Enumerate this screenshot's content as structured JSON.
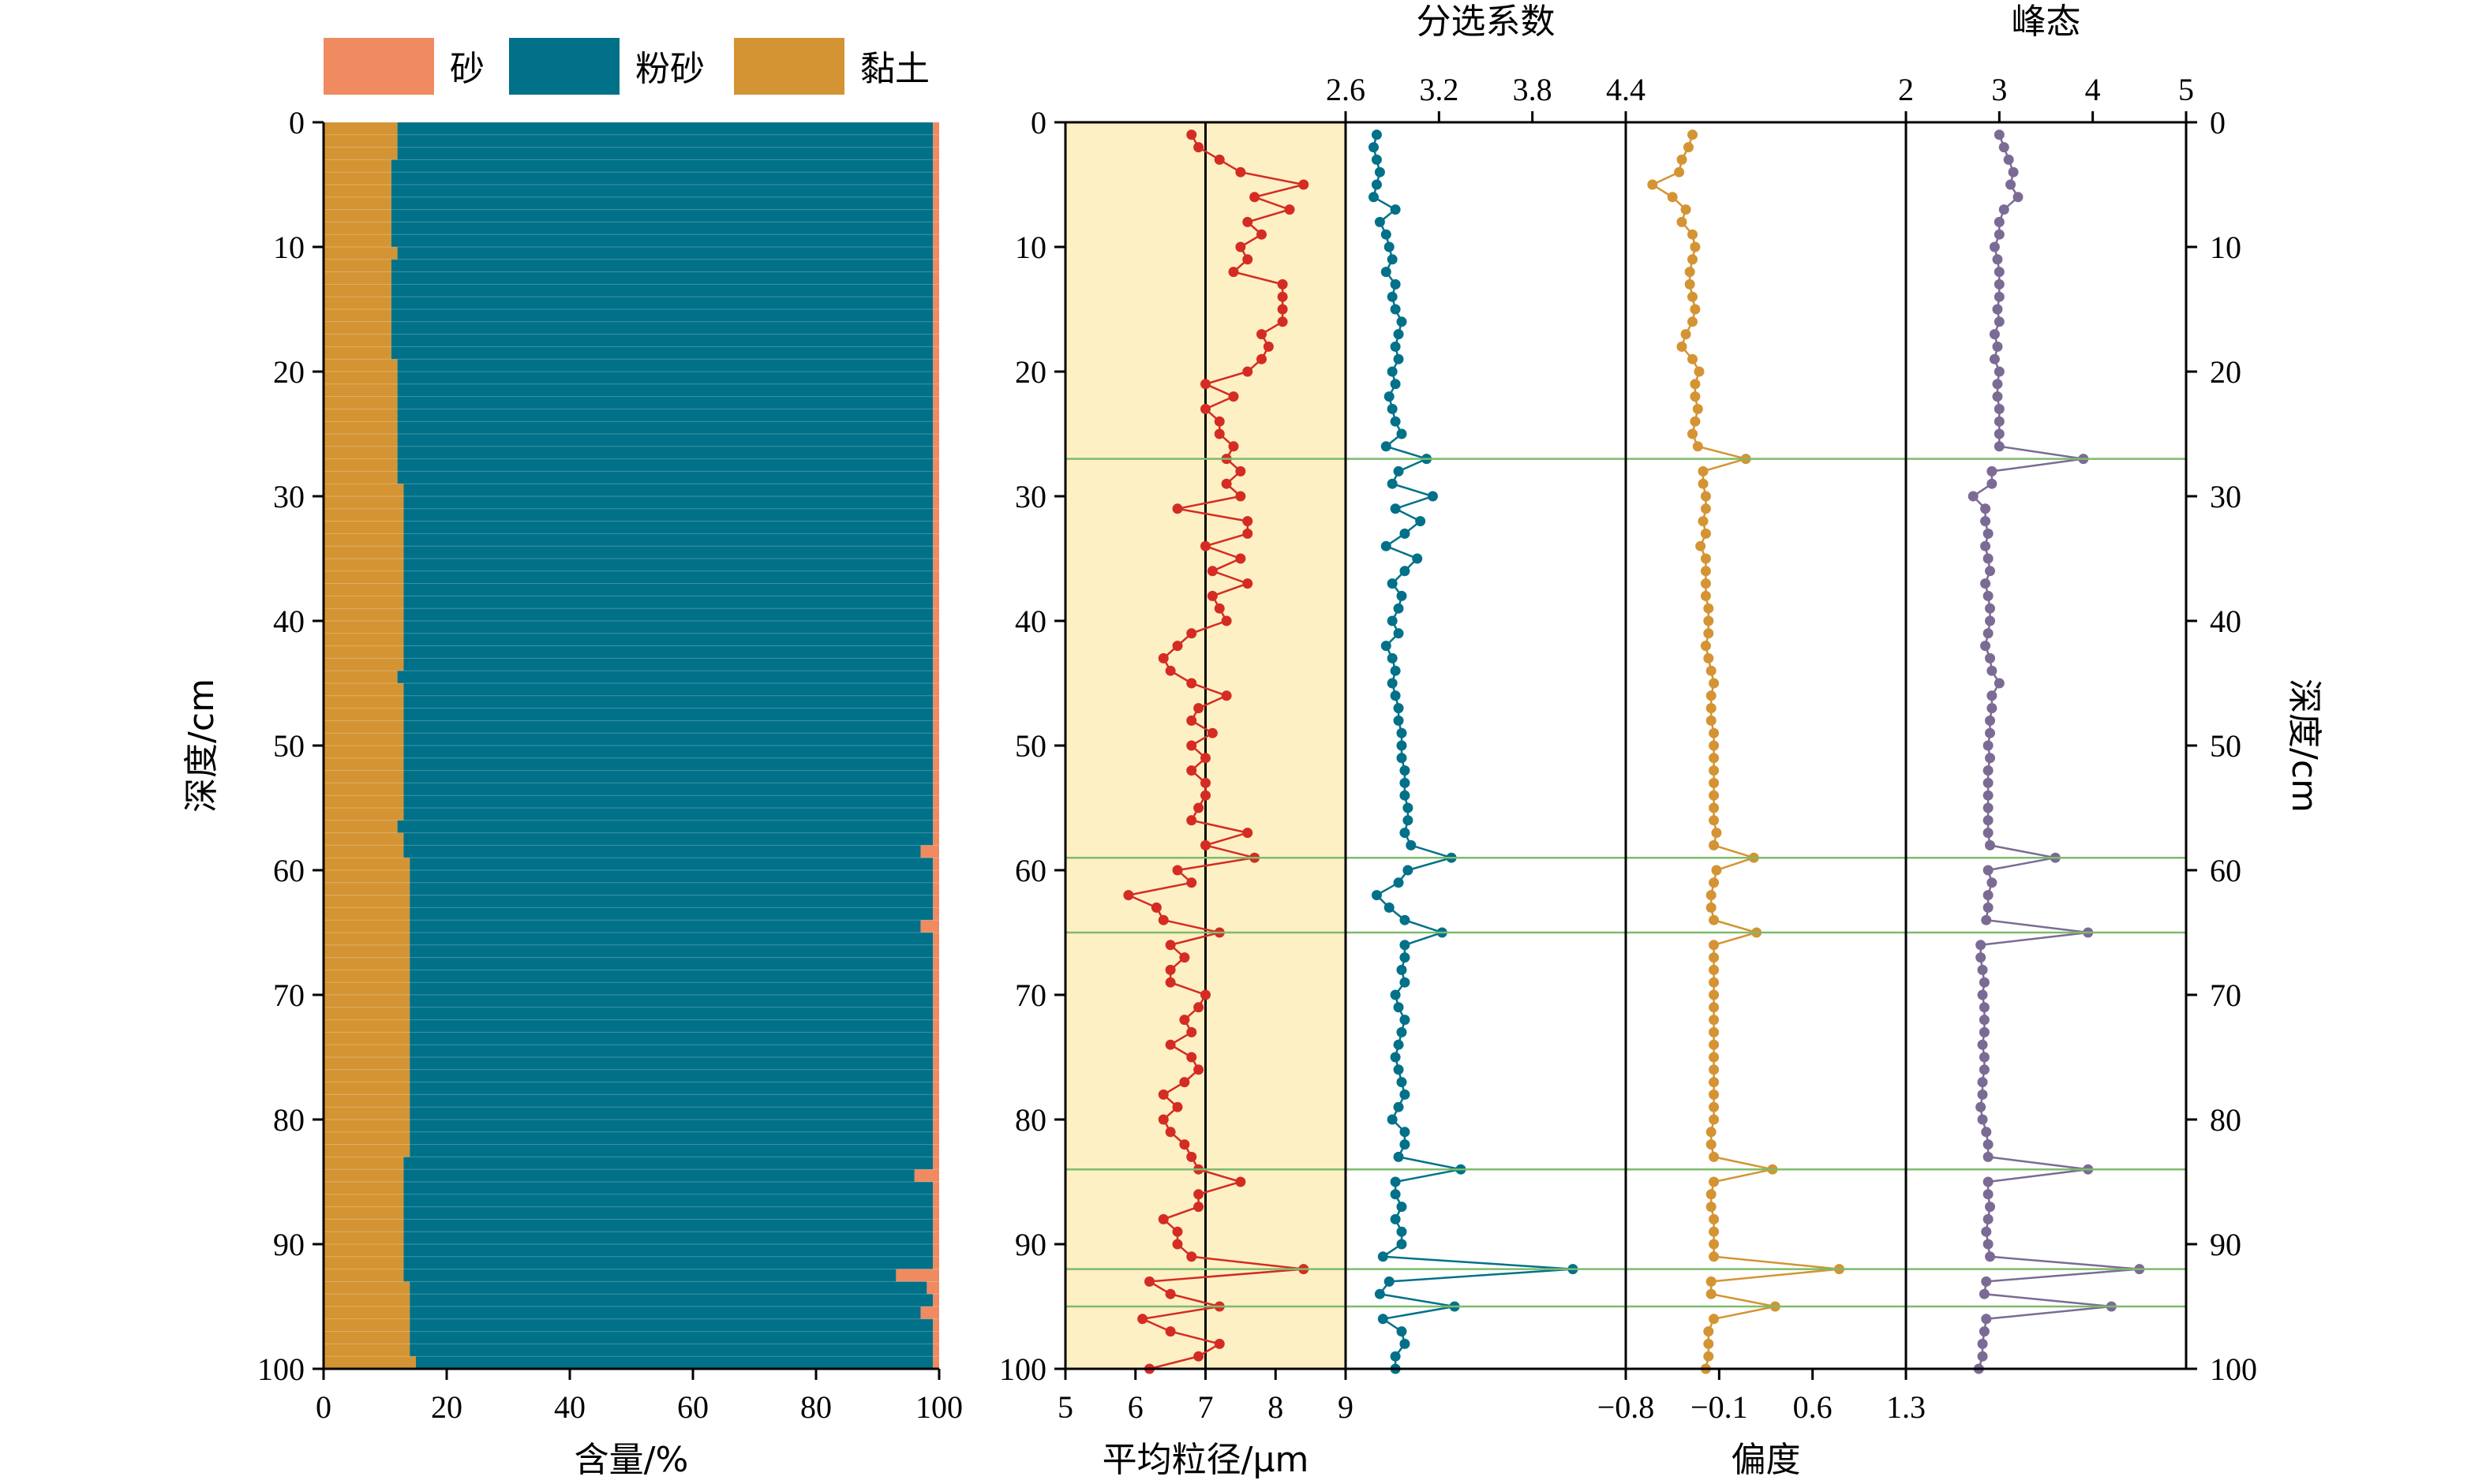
{
  "chart_data": [
    {
      "type": "stacked-bar-horizontal",
      "xlabel": "含量/%",
      "ylabel": "深度/cm",
      "xlim": [
        0,
        100
      ],
      "ylim": [
        0,
        100
      ],
      "xticks": [
        "0",
        "20",
        "40",
        "60",
        "80",
        "100"
      ],
      "yticks": [
        "0",
        "10",
        "20",
        "30",
        "40",
        "50",
        "60",
        "70",
        "80",
        "90",
        "100"
      ],
      "legend": {
        "position": "top",
        "entries": [
          {
            "name": "砂",
            "color": "#F08A60"
          },
          {
            "name": "粉砂",
            "color": "#007189"
          },
          {
            "name": "黏土",
            "color": "#D49433"
          }
        ]
      },
      "depth": [
        1,
        2,
        3,
        4,
        5,
        6,
        7,
        8,
        9,
        10,
        11,
        12,
        13,
        14,
        15,
        16,
        17,
        18,
        19,
        20,
        21,
        22,
        23,
        24,
        25,
        26,
        27,
        28,
        29,
        30,
        31,
        32,
        33,
        34,
        35,
        36,
        37,
        38,
        39,
        40,
        41,
        42,
        43,
        44,
        45,
        46,
        47,
        48,
        49,
        50,
        51,
        52,
        53,
        54,
        55,
        56,
        57,
        58,
        59,
        60,
        61,
        62,
        63,
        64,
        65,
        66,
        67,
        68,
        69,
        70,
        71,
        72,
        73,
        74,
        75,
        76,
        77,
        78,
        79,
        80,
        81,
        82,
        83,
        84,
        85,
        86,
        87,
        88,
        89,
        90,
        91,
        92,
        93,
        94,
        95,
        96,
        97,
        98,
        99,
        100
      ],
      "clay": [
        12,
        12,
        12,
        11,
        11,
        11,
        11,
        11,
        11,
        11,
        12,
        11,
        11,
        11,
        11,
        11,
        11,
        11,
        11,
        12,
        12,
        12,
        12,
        12,
        12,
        12,
        12,
        12,
        12,
        13,
        13,
        13,
        13,
        13,
        13,
        13,
        13,
        13,
        13,
        13,
        13,
        13,
        13,
        13,
        12,
        13,
        13,
        13,
        13,
        13,
        13,
        13,
        13,
        13,
        13,
        13,
        12,
        13,
        13,
        14,
        14,
        14,
        14,
        14,
        14,
        14,
        14,
        14,
        14,
        14,
        14,
        14,
        14,
        14,
        14,
        14,
        14,
        14,
        14,
        14,
        14,
        14,
        14,
        13,
        13,
        13,
        13,
        13,
        13,
        13,
        13,
        13,
        13,
        14,
        14,
        14,
        14,
        14,
        14,
        15
      ],
      "sand": [
        1,
        1,
        1,
        1,
        1,
        1,
        1,
        1,
        1,
        1,
        1,
        1,
        1,
        1,
        1,
        1,
        1,
        1,
        1,
        1,
        1,
        1,
        1,
        1,
        1,
        1,
        1,
        1,
        1,
        1,
        1,
        1,
        1,
        1,
        1,
        1,
        1,
        1,
        1,
        1,
        1,
        1,
        1,
        1,
        1,
        1,
        1,
        1,
        1,
        1,
        1,
        1,
        1,
        1,
        1,
        1,
        1,
        1,
        3,
        1,
        1,
        1,
        1,
        1,
        3,
        1,
        1,
        1,
        1,
        1,
        1,
        1,
        1,
        1,
        1,
        1,
        1,
        1,
        1,
        1,
        1,
        1,
        1,
        1,
        4,
        1,
        1,
        1,
        1,
        1,
        1,
        1,
        7,
        2,
        1,
        3,
        1,
        1,
        1,
        1
      ]
    },
    {
      "type": "line",
      "xlabel": "平均粒径/μm",
      "xlim": [
        5,
        9
      ],
      "xticks": [
        "5",
        "6",
        "7",
        "8",
        "9"
      ],
      "ylim": [
        0,
        100
      ],
      "reference_x": 7,
      "color": "#D42C23",
      "background": "#FDF0C4",
      "depth": [
        1,
        2,
        3,
        4,
        5,
        6,
        7,
        8,
        9,
        10,
        11,
        12,
        13,
        14,
        15,
        16,
        17,
        18,
        19,
        20,
        21,
        22,
        23,
        24,
        25,
        26,
        27,
        28,
        29,
        30,
        31,
        32,
        33,
        34,
        35,
        36,
        37,
        38,
        39,
        40,
        41,
        42,
        43,
        44,
        45,
        46,
        47,
        48,
        49,
        50,
        51,
        52,
        53,
        54,
        55,
        56,
        57,
        58,
        59,
        60,
        61,
        62,
        63,
        64,
        65,
        66,
        67,
        68,
        69,
        70,
        71,
        72,
        73,
        74,
        75,
        76,
        77,
        78,
        79,
        80,
        81,
        82,
        83,
        84,
        85,
        86,
        87,
        88,
        89,
        90,
        91,
        92,
        93,
        94,
        95,
        96,
        97,
        98,
        99,
        100
      ],
      "values": [
        6.8,
        6.9,
        7.2,
        7.5,
        8.4,
        7.7,
        8.2,
        7.6,
        7.8,
        7.5,
        7.6,
        7.4,
        8.1,
        8.1,
        8.1,
        8.1,
        7.8,
        7.9,
        7.8,
        7.6,
        7.0,
        7.4,
        7.0,
        7.2,
        7.2,
        7.4,
        7.3,
        7.5,
        7.3,
        7.5,
        6.6,
        7.6,
        7.6,
        7.0,
        7.5,
        7.1,
        7.6,
        7.1,
        7.2,
        7.3,
        6.8,
        6.6,
        6.4,
        6.5,
        6.8,
        7.3,
        6.9,
        6.8,
        7.1,
        6.8,
        7.0,
        6.8,
        7.0,
        7.0,
        6.9,
        6.8,
        7.6,
        7.0,
        7.7,
        6.6,
        6.8,
        5.9,
        6.3,
        6.4,
        7.2,
        6.5,
        6.7,
        6.5,
        6.5,
        7.0,
        6.9,
        6.7,
        6.8,
        6.5,
        6.8,
        6.9,
        6.7,
        6.4,
        6.6,
        6.4,
        6.5,
        6.7,
        6.8,
        6.9,
        7.5,
        6.9,
        6.9,
        6.4,
        6.6,
        6.6,
        6.8,
        8.4,
        6.2,
        6.5,
        7.2,
        6.1,
        6.5,
        7.2,
        6.9,
        6.2
      ]
    },
    {
      "type": "line",
      "title": "分选系数",
      "xlim": [
        2.6,
        4.4
      ],
      "xticks": [
        "2.6",
        "3.2",
        "3.8",
        "4.4"
      ],
      "xaxis_position": "top",
      "ylim": [
        0,
        100
      ],
      "color": "#007189",
      "depth": [
        1,
        2,
        3,
        4,
        5,
        6,
        7,
        8,
        9,
        10,
        11,
        12,
        13,
        14,
        15,
        16,
        17,
        18,
        19,
        20,
        21,
        22,
        23,
        24,
        25,
        26,
        27,
        28,
        29,
        30,
        31,
        32,
        33,
        34,
        35,
        36,
        37,
        38,
        39,
        40,
        41,
        42,
        43,
        44,
        45,
        46,
        47,
        48,
        49,
        50,
        51,
        52,
        53,
        54,
        55,
        56,
        57,
        58,
        59,
        60,
        61,
        62,
        63,
        64,
        65,
        66,
        67,
        68,
        69,
        70,
        71,
        72,
        73,
        74,
        75,
        76,
        77,
        78,
        79,
        80,
        81,
        82,
        83,
        84,
        85,
        86,
        87,
        88,
        89,
        90,
        91,
        92,
        93,
        94,
        95,
        96,
        97,
        98,
        99,
        100
      ],
      "values": [
        2.8,
        2.78,
        2.8,
        2.82,
        2.8,
        2.78,
        2.92,
        2.82,
        2.86,
        2.88,
        2.9,
        2.86,
        2.92,
        2.9,
        2.92,
        2.96,
        2.94,
        2.92,
        2.94,
        2.9,
        2.92,
        2.88,
        2.9,
        2.92,
        2.96,
        2.86,
        3.12,
        2.94,
        2.9,
        3.16,
        2.92,
        3.08,
        2.98,
        2.86,
        3.06,
        2.98,
        2.9,
        2.96,
        2.94,
        2.9,
        2.94,
        2.86,
        2.9,
        2.92,
        2.9,
        2.92,
        2.94,
        2.94,
        2.96,
        2.96,
        2.96,
        2.98,
        2.98,
        2.98,
        3.0,
        3.0,
        2.98,
        3.02,
        3.28,
        3.0,
        2.94,
        2.8,
        2.88,
        2.98,
        3.22,
        2.98,
        2.98,
        2.96,
        2.98,
        2.92,
        2.94,
        2.98,
        2.96,
        2.94,
        2.92,
        2.94,
        2.96,
        2.98,
        2.94,
        2.9,
        2.98,
        2.98,
        2.94,
        3.34,
        2.92,
        2.92,
        2.96,
        2.92,
        2.96,
        2.96,
        2.84,
        4.06,
        2.88,
        2.82,
        3.3,
        2.84,
        2.96,
        2.98,
        2.92,
        2.92
      ]
    },
    {
      "type": "line",
      "xlabel": "偏度",
      "xlim": [
        -0.8,
        1.3
      ],
      "xticks": [
        "−0.8",
        "−0.1",
        "0.6",
        "1.3"
      ],
      "ylim": [
        0,
        100
      ],
      "color": "#D49433",
      "depth": [
        1,
        2,
        3,
        4,
        5,
        6,
        7,
        8,
        9,
        10,
        11,
        12,
        13,
        14,
        15,
        16,
        17,
        18,
        19,
        20,
        21,
        22,
        23,
        24,
        25,
        26,
        27,
        28,
        29,
        30,
        31,
        32,
        33,
        34,
        35,
        36,
        37,
        38,
        39,
        40,
        41,
        42,
        43,
        44,
        45,
        46,
        47,
        48,
        49,
        50,
        51,
        52,
        53,
        54,
        55,
        56,
        57,
        58,
        59,
        60,
        61,
        62,
        63,
        64,
        65,
        66,
        67,
        68,
        69,
        70,
        71,
        72,
        73,
        74,
        75,
        76,
        77,
        78,
        79,
        80,
        81,
        82,
        83,
        84,
        85,
        86,
        87,
        88,
        89,
        90,
        91,
        92,
        93,
        94,
        95,
        96,
        97,
        98,
        99,
        100
      ],
      "values": [
        -0.3,
        -0.33,
        -0.38,
        -0.4,
        -0.6,
        -0.45,
        -0.35,
        -0.38,
        -0.3,
        -0.28,
        -0.3,
        -0.32,
        -0.32,
        -0.3,
        -0.28,
        -0.3,
        -0.35,
        -0.38,
        -0.3,
        -0.25,
        -0.28,
        -0.28,
        -0.26,
        -0.28,
        -0.3,
        -0.26,
        0.1,
        -0.22,
        -0.22,
        -0.2,
        -0.2,
        -0.22,
        -0.2,
        -0.24,
        -0.2,
        -0.2,
        -0.2,
        -0.2,
        -0.18,
        -0.18,
        -0.18,
        -0.2,
        -0.18,
        -0.16,
        -0.14,
        -0.16,
        -0.16,
        -0.16,
        -0.14,
        -0.14,
        -0.14,
        -0.14,
        -0.14,
        -0.14,
        -0.14,
        -0.14,
        -0.12,
        -0.14,
        0.16,
        -0.12,
        -0.14,
        -0.16,
        -0.16,
        -0.14,
        0.18,
        -0.14,
        -0.14,
        -0.14,
        -0.14,
        -0.14,
        -0.14,
        -0.14,
        -0.14,
        -0.14,
        -0.14,
        -0.14,
        -0.14,
        -0.14,
        -0.14,
        -0.14,
        -0.16,
        -0.16,
        -0.14,
        0.3,
        -0.14,
        -0.16,
        -0.16,
        -0.14,
        -0.14,
        -0.14,
        -0.14,
        0.8,
        -0.16,
        -0.16,
        0.32,
        -0.14,
        -0.18,
        -0.18,
        -0.18,
        -0.2
      ]
    },
    {
      "type": "line",
      "title": "峰态",
      "xlim": [
        2,
        5
      ],
      "xticks": [
        "2",
        "3",
        "4",
        "5"
      ],
      "xaxis_position": "top",
      "ylim": [
        0,
        100
      ],
      "yticks_right": [
        "0",
        "10",
        "20",
        "30",
        "40",
        "50",
        "60",
        "70",
        "80",
        "90",
        "100"
      ],
      "ylabel_right": "深度/cm",
      "color": "#7B6B94",
      "depth": [
        1,
        2,
        3,
        4,
        5,
        6,
        7,
        8,
        9,
        10,
        11,
        12,
        13,
        14,
        15,
        16,
        17,
        18,
        19,
        20,
        21,
        22,
        23,
        24,
        25,
        26,
        27,
        28,
        29,
        30,
        31,
        32,
        33,
        34,
        35,
        36,
        37,
        38,
        39,
        40,
        41,
        42,
        43,
        44,
        45,
        46,
        47,
        48,
        49,
        50,
        51,
        52,
        53,
        54,
        55,
        56,
        57,
        58,
        59,
        60,
        61,
        62,
        63,
        64,
        65,
        66,
        67,
        68,
        69,
        70,
        71,
        72,
        73,
        74,
        75,
        76,
        77,
        78,
        79,
        80,
        81,
        82,
        83,
        84,
        85,
        86,
        87,
        88,
        89,
        90,
        91,
        92,
        93,
        94,
        95,
        96,
        97,
        98,
        99,
        100
      ],
      "values": [
        3.0,
        3.05,
        3.1,
        3.15,
        3.12,
        3.2,
        3.05,
        3.0,
        3.0,
        2.95,
        2.98,
        3.0,
        3.0,
        3.0,
        2.98,
        3.0,
        2.95,
        2.98,
        2.95,
        3.0,
        2.98,
        2.98,
        3.0,
        3.0,
        3.0,
        3.0,
        3.9,
        2.92,
        2.92,
        2.72,
        2.85,
        2.85,
        2.88,
        2.85,
        2.88,
        2.9,
        2.85,
        2.88,
        2.9,
        2.9,
        2.88,
        2.85,
        2.9,
        2.92,
        3.0,
        2.92,
        2.92,
        2.9,
        2.9,
        2.88,
        2.9,
        2.88,
        2.88,
        2.88,
        2.88,
        2.88,
        2.88,
        2.9,
        3.6,
        2.88,
        2.92,
        2.88,
        2.88,
        2.86,
        3.95,
        2.8,
        2.8,
        2.82,
        2.84,
        2.82,
        2.84,
        2.84,
        2.84,
        2.82,
        2.84,
        2.84,
        2.82,
        2.82,
        2.8,
        2.82,
        2.86,
        2.88,
        2.88,
        3.95,
        2.88,
        2.88,
        2.9,
        2.88,
        2.86,
        2.88,
        2.9,
        4.5,
        2.86,
        2.84,
        4.2,
        2.86,
        2.84,
        2.82,
        2.82,
        2.78
      ]
    }
  ],
  "reference_depths": [
    27,
    59,
    65,
    84,
    92,
    95
  ],
  "reference_line_color": "#7DBB6B"
}
